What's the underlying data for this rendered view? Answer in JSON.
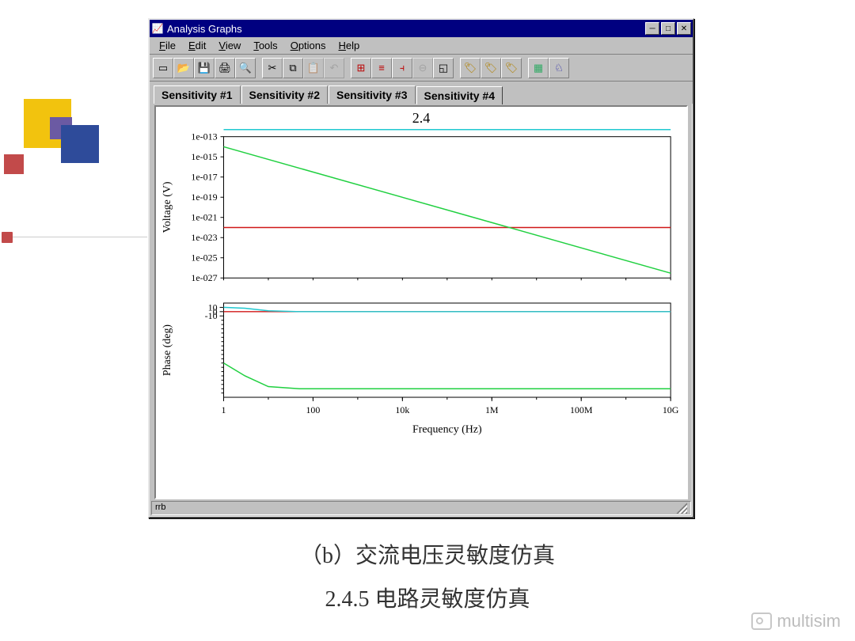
{
  "window": {
    "title": "Analysis Graphs",
    "menus": [
      "File",
      "Edit",
      "View",
      "Tools",
      "Options",
      "Help"
    ],
    "status": "rrb"
  },
  "toolbar_buttons": [
    {
      "name": "new-icon",
      "glyph": "▭",
      "color": "#000"
    },
    {
      "name": "open-icon",
      "glyph": "📂",
      "color": "#c9a227"
    },
    {
      "name": "save-icon",
      "glyph": "💾",
      "color": "#000"
    },
    {
      "name": "print-icon",
      "glyph": "🖨",
      "color": "#000"
    },
    {
      "name": "preview-icon",
      "glyph": "🔍",
      "color": "#000"
    },
    {
      "sep": true
    },
    {
      "name": "cut-icon",
      "glyph": "✂",
      "color": "#000"
    },
    {
      "name": "copy-icon",
      "glyph": "⧉",
      "color": "#000"
    },
    {
      "name": "paste-icon",
      "glyph": "📋",
      "color": "#888",
      "disabled": true
    },
    {
      "name": "undo-icon",
      "glyph": "↶",
      "color": "#888",
      "disabled": true
    },
    {
      "sep": true
    },
    {
      "name": "grid-icon",
      "glyph": "⊞",
      "color": "#b00"
    },
    {
      "name": "legend-icon",
      "glyph": "≡",
      "color": "#b00"
    },
    {
      "name": "cursor-icon",
      "glyph": "⫞",
      "color": "#b00"
    },
    {
      "name": "zoom-out-icon",
      "glyph": "⊖",
      "color": "#888",
      "disabled": true
    },
    {
      "name": "restore-icon",
      "glyph": "◱",
      "color": "#000"
    },
    {
      "sep": true
    },
    {
      "name": "tag1-icon",
      "glyph": "🏷",
      "color": "#b08000"
    },
    {
      "name": "tag2-icon",
      "glyph": "🏷",
      "color": "#b08000"
    },
    {
      "name": "tag3-icon",
      "glyph": "🏷",
      "color": "#b08000"
    },
    {
      "sep": true
    },
    {
      "name": "props-icon",
      "glyph": "▦",
      "color": "#3a6"
    },
    {
      "name": "run-icon",
      "glyph": "♘",
      "color": "#22a"
    }
  ],
  "tabs": {
    "items": [
      "Sensitivity #1",
      "Sensitivity #2",
      "Sensitivity #3",
      "Sensitivity #4"
    ],
    "active_index": 3
  },
  "chart": {
    "title": "2.4",
    "x": {
      "label": "Frequency (Hz)",
      "scale": "log",
      "min": 1,
      "max": 10000000000.0,
      "ticks": [
        "1",
        "100",
        "10k",
        "1M",
        "100M",
        "10G"
      ],
      "tick_vals": [
        1,
        100,
        10000.0,
        1000000.0,
        100000000.0,
        10000000000.0
      ]
    },
    "voltage": {
      "ylabel": "Voltage (V)",
      "scale": "log",
      "min": 1e-27,
      "max": 1e-13,
      "ticks": [
        "1e-013",
        "1e-015",
        "1e-017",
        "1e-019",
        "1e-021",
        "1e-023",
        "1e-025",
        "1e-027"
      ],
      "tick_vals": [
        1e-13,
        1e-15,
        1e-17,
        1e-19,
        1e-21,
        1e-23,
        1e-25,
        1e-27
      ],
      "series": [
        {
          "name": "cyan",
          "color": "#20c8d0",
          "type": "constant",
          "value": 5e-13
        },
        {
          "name": "red",
          "color": "#d01818",
          "type": "constant",
          "value": 1e-22
        },
        {
          "name": "green",
          "color": "#20d040",
          "type": "line",
          "p1": [
            1,
            1e-14
          ],
          "p2": [
            10000000000.0,
            3e-27
          ]
        }
      ]
    },
    "phase": {
      "ylabel": "Phase (deg)",
      "scale": "linear",
      "min": -200,
      "max": 20,
      "ticks": [
        "10",
        "0",
        "-10"
      ],
      "major_tick_vals": [
        10,
        0,
        -10
      ],
      "series": [
        {
          "name": "red",
          "color": "#d01818",
          "type": "constant_pts",
          "points": [
            [
              1,
              0
            ],
            [
              10,
              0
            ],
            [
              10000000000.0,
              0
            ]
          ]
        },
        {
          "name": "cyan",
          "color": "#20c8d0",
          "type": "pts",
          "points": [
            [
              1,
              10
            ],
            [
              3,
              8
            ],
            [
              10,
              2
            ],
            [
              50,
              0
            ],
            [
              10000000000.0,
              0
            ]
          ]
        },
        {
          "name": "green",
          "color": "#20d040",
          "type": "pts",
          "points": [
            [
              1,
              -120
            ],
            [
              3,
              -150
            ],
            [
              10,
              -175
            ],
            [
              50,
              -180
            ],
            [
              10000000000.0,
              -180
            ]
          ]
        }
      ]
    },
    "plot_style": {
      "bg": "#ffffff",
      "axis_color": "#000000",
      "tick_font_size": 12,
      "label_font_size": 14,
      "line_width": 1.5
    }
  },
  "captions": {
    "line1": "（b）交流电压灵敏度仿真",
    "line2": "2.4.5 电路灵敏度仿真"
  },
  "watermark": "multisim"
}
